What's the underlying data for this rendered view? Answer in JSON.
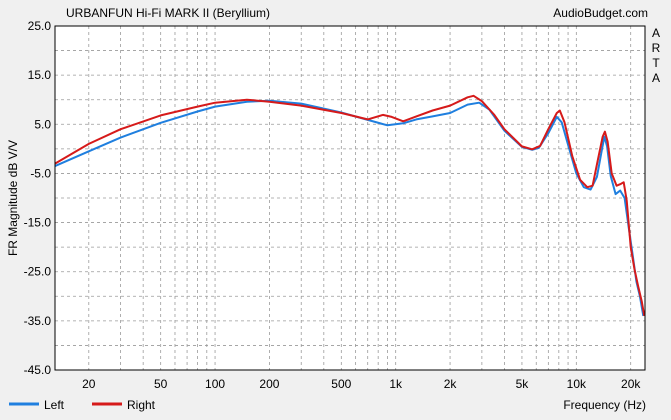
{
  "chart_data": {
    "type": "line",
    "title": "URBANFUN Hi-Fi MARK II (Beryllium)",
    "source_label": "AudioBudget.com",
    "side_label": [
      "A",
      "R",
      "T",
      "A"
    ],
    "xlabel": "Frequency (Hz)",
    "ylabel": "FR Magnitude dB V/V",
    "x_scale": "log",
    "xlim": [
      13,
      24000
    ],
    "ylim": [
      -45,
      25
    ],
    "x_ticks": [
      {
        "value": 20,
        "label": "20"
      },
      {
        "value": 50,
        "label": "50"
      },
      {
        "value": 100,
        "label": "100"
      },
      {
        "value": 200,
        "label": "200"
      },
      {
        "value": 500,
        "label": "500"
      },
      {
        "value": 1000,
        "label": "1k"
      },
      {
        "value": 2000,
        "label": "2k"
      },
      {
        "value": 5000,
        "label": "5k"
      },
      {
        "value": 10000,
        "label": "10k"
      },
      {
        "value": 20000,
        "label": "20k"
      }
    ],
    "y_ticks": [
      "25.0",
      "15.0",
      "5.0",
      "-5.0",
      "-15.0",
      "-25.0",
      "-35.0",
      "-45.0"
    ],
    "grid": true,
    "legend_position": "bottom-left",
    "series": [
      {
        "name": "Left",
        "color": "#1f7fdf",
        "points": [
          [
            13,
            -3.5
          ],
          [
            20,
            -0.5
          ],
          [
            30,
            2.3
          ],
          [
            50,
            5.3
          ],
          [
            80,
            7.6
          ],
          [
            100,
            8.6
          ],
          [
            150,
            9.6
          ],
          [
            200,
            9.8
          ],
          [
            300,
            9.2
          ],
          [
            500,
            7.4
          ],
          [
            700,
            5.9
          ],
          [
            900,
            4.8
          ],
          [
            1100,
            5.2
          ],
          [
            1300,
            6.0
          ],
          [
            1600,
            6.6
          ],
          [
            2000,
            7.3
          ],
          [
            2500,
            9.0
          ],
          [
            2900,
            9.4
          ],
          [
            3300,
            8.0
          ],
          [
            4000,
            3.7
          ],
          [
            5000,
            0.4
          ],
          [
            5700,
            -0.2
          ],
          [
            6200,
            0.2
          ],
          [
            7000,
            3.2
          ],
          [
            7800,
            6.5
          ],
          [
            8300,
            5.4
          ],
          [
            9000,
            0.8
          ],
          [
            10000,
            -5.0
          ],
          [
            11000,
            -7.8
          ],
          [
            12000,
            -8.3
          ],
          [
            13000,
            -5.7
          ],
          [
            13800,
            -0.5
          ],
          [
            14300,
            2.5
          ],
          [
            14800,
            0.5
          ],
          [
            15500,
            -5.5
          ],
          [
            16500,
            -9.2
          ],
          [
            17500,
            -8.5
          ],
          [
            18500,
            -10.0
          ],
          [
            19500,
            -16.0
          ],
          [
            20500,
            -21.5
          ],
          [
            21500,
            -27.0
          ],
          [
            22500,
            -30.0
          ],
          [
            23500,
            -34.0
          ]
        ]
      },
      {
        "name": "Right",
        "color": "#d61a1a",
        "points": [
          [
            13,
            -3.0
          ],
          [
            20,
            1.0
          ],
          [
            30,
            4.0
          ],
          [
            50,
            6.8
          ],
          [
            80,
            8.6
          ],
          [
            100,
            9.4
          ],
          [
            150,
            10.0
          ],
          [
            200,
            9.6
          ],
          [
            300,
            8.8
          ],
          [
            500,
            7.3
          ],
          [
            700,
            6.0
          ],
          [
            850,
            6.9
          ],
          [
            950,
            6.5
          ],
          [
            1100,
            5.6
          ],
          [
            1300,
            6.6
          ],
          [
            1600,
            7.8
          ],
          [
            2000,
            8.8
          ],
          [
            2500,
            10.5
          ],
          [
            2700,
            10.8
          ],
          [
            3000,
            9.7
          ],
          [
            3500,
            7.0
          ],
          [
            4000,
            4.0
          ],
          [
            5000,
            0.5
          ],
          [
            5700,
            -0.1
          ],
          [
            6300,
            0.6
          ],
          [
            7000,
            4.0
          ],
          [
            7800,
            7.3
          ],
          [
            8100,
            7.8
          ],
          [
            8600,
            5.4
          ],
          [
            9500,
            -1.5
          ],
          [
            10500,
            -6.3
          ],
          [
            11500,
            -7.8
          ],
          [
            12300,
            -7.5
          ],
          [
            13200,
            -2.0
          ],
          [
            14000,
            2.5
          ],
          [
            14400,
            3.5
          ],
          [
            14900,
            1.5
          ],
          [
            15700,
            -5.0
          ],
          [
            16700,
            -7.5
          ],
          [
            17500,
            -7.2
          ],
          [
            18300,
            -6.8
          ],
          [
            19000,
            -10.5
          ],
          [
            20000,
            -20.0
          ],
          [
            21000,
            -24.5
          ],
          [
            22000,
            -28.0
          ],
          [
            23000,
            -31.0
          ],
          [
            23800,
            -34.0
          ]
        ]
      }
    ]
  }
}
